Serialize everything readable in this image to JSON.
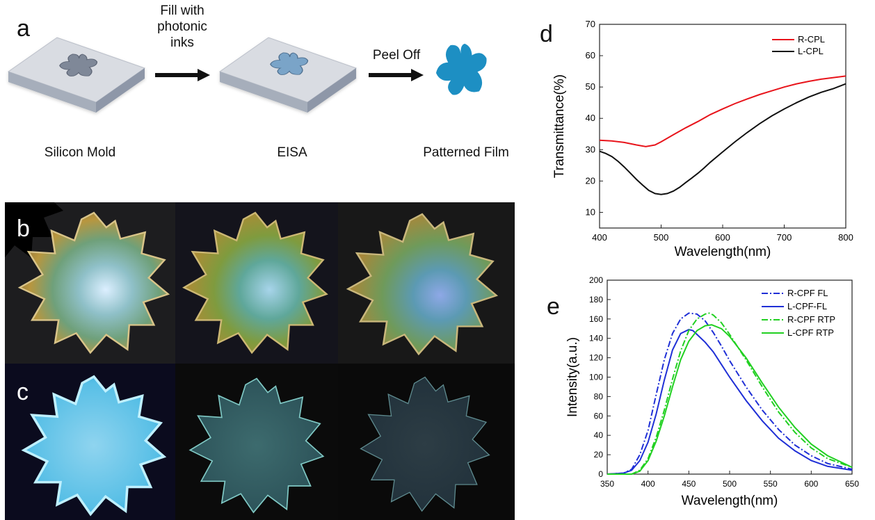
{
  "panel_a": {
    "label": "a",
    "step1_caption": "Silicon Mold",
    "arrow1_text": [
      "Fill with",
      "photonic",
      "inks"
    ],
    "step2_caption": "EISA",
    "arrow2_text": [
      "Peel Off"
    ],
    "step3_caption": "Patterned Film",
    "mold_top_color": "#d9dce2",
    "mold_side_color": "#8e97a8",
    "film_color": "#1d8fc3"
  },
  "panel_b": {
    "label": "b"
  },
  "panel_c": {
    "label": "c"
  },
  "panel_d": {
    "label": "d"
  },
  "panel_e": {
    "label": "e"
  },
  "chart_data": [
    {
      "type": "line",
      "panel": "d",
      "xlabel": "Wavelength(nm)",
      "ylabel": "Transmittance(%)",
      "xlim": [
        400,
        800
      ],
      "ylim": [
        5,
        70
      ],
      "xticks": [
        400,
        500,
        600,
        700,
        800
      ],
      "yticks": [
        10,
        20,
        30,
        40,
        50,
        60,
        70
      ],
      "legend_position": "top-right",
      "series": [
        {
          "name": "R-CPL",
          "color": "#e8141b",
          "style": "solid",
          "x": [
            400,
            420,
            440,
            460,
            475,
            490,
            500,
            520,
            540,
            560,
            580,
            600,
            620,
            640,
            660,
            680,
            700,
            720,
            740,
            760,
            780,
            800
          ],
          "y": [
            33,
            32.8,
            32.3,
            31.5,
            31,
            31.5,
            32.5,
            34.8,
            37,
            39,
            41.2,
            43,
            44.7,
            46.2,
            47.6,
            48.8,
            50,
            51,
            51.8,
            52.5,
            53,
            53.5
          ]
        },
        {
          "name": "L-CPL",
          "color": "#111111",
          "style": "solid",
          "x": [
            400,
            410,
            420,
            430,
            440,
            450,
            460,
            470,
            480,
            490,
            500,
            510,
            520,
            530,
            540,
            550,
            560,
            570,
            580,
            600,
            620,
            640,
            660,
            680,
            700,
            720,
            740,
            760,
            780,
            800
          ],
          "y": [
            29.5,
            28.8,
            27.8,
            26.3,
            24.5,
            22.5,
            20.5,
            18.7,
            17,
            16,
            15.7,
            16,
            16.8,
            18,
            19.5,
            21,
            22.5,
            24.2,
            26,
            29.3,
            32.5,
            35.5,
            38.3,
            40.8,
            43,
            45,
            46.8,
            48.3,
            49.5,
            51
          ]
        }
      ]
    },
    {
      "type": "line",
      "panel": "e",
      "xlabel": "Wavelength(nm)",
      "ylabel": "Intensity(a.u.)",
      "xlim": [
        350,
        650
      ],
      "ylim": [
        0,
        200
      ],
      "xticks": [
        350,
        400,
        450,
        500,
        550,
        600,
        650
      ],
      "yticks": [
        0,
        20,
        40,
        60,
        80,
        100,
        120,
        140,
        160,
        180,
        200
      ],
      "legend_position": "top-right",
      "series": [
        {
          "name": "R-CPF FL",
          "color": "#1f2fd6",
          "style": "dashdot",
          "x": [
            350,
            370,
            380,
            390,
            400,
            410,
            420,
            430,
            440,
            450,
            460,
            470,
            480,
            490,
            500,
            520,
            540,
            560,
            580,
            600,
            620,
            650
          ],
          "y": [
            0,
            1,
            5,
            20,
            45,
            82,
            118,
            145,
            160,
            166,
            165,
            158,
            146,
            132,
            117,
            90,
            66,
            46,
            30,
            19,
            11,
            5
          ]
        },
        {
          "name": "L-CPF-FL",
          "color": "#1f2fd6",
          "style": "solid",
          "x": [
            350,
            370,
            380,
            390,
            400,
            410,
            420,
            430,
            440,
            450,
            455,
            460,
            470,
            480,
            490,
            500,
            520,
            540,
            560,
            580,
            600,
            620,
            650
          ],
          "y": [
            0,
            1,
            4,
            14,
            33,
            62,
            97,
            128,
            145,
            149,
            148,
            144,
            136,
            126,
            113,
            100,
            76,
            55,
            37,
            24,
            14,
            8,
            4
          ]
        },
        {
          "name": "R-CPF RTP",
          "color": "#21d021",
          "style": "dashdot",
          "x": [
            350,
            380,
            390,
            400,
            410,
            420,
            430,
            440,
            450,
            460,
            470,
            475,
            480,
            490,
            500,
            520,
            540,
            560,
            580,
            600,
            620,
            650
          ],
          "y": [
            0,
            0,
            4,
            16,
            38,
            66,
            98,
            127,
            148,
            160,
            165,
            166,
            164,
            156,
            144,
            118,
            90,
            64,
            43,
            27,
            16,
            7
          ]
        },
        {
          "name": "L-CPF RTP",
          "color": "#21d021",
          "style": "solid",
          "x": [
            350,
            380,
            390,
            400,
            410,
            420,
            430,
            440,
            450,
            460,
            470,
            478,
            490,
            500,
            520,
            540,
            560,
            580,
            600,
            620,
            650
          ],
          "y": [
            0,
            0,
            3,
            14,
            34,
            60,
            90,
            118,
            137,
            148,
            153,
            154,
            150,
            142,
            120,
            94,
            69,
            48,
            31,
            19,
            7
          ]
        }
      ]
    }
  ]
}
